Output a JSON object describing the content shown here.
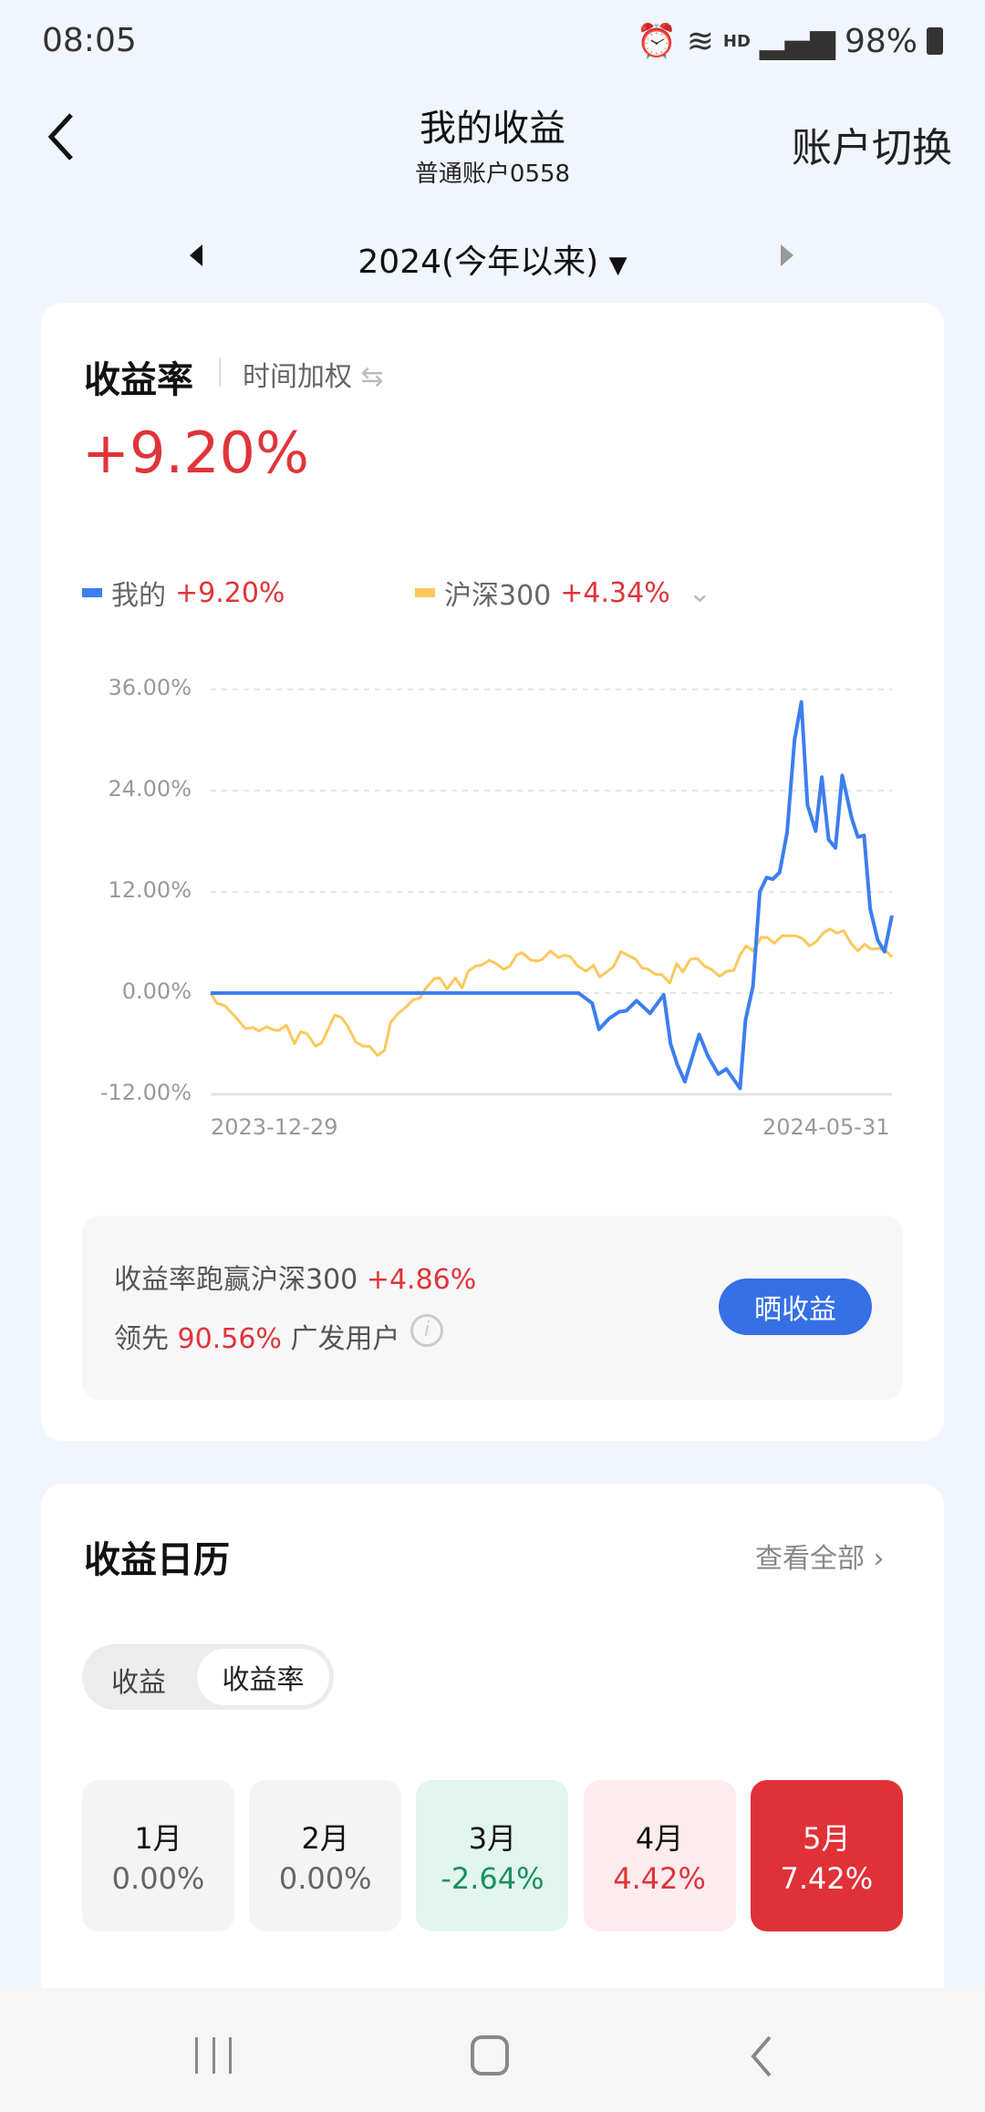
{
  "status": {
    "time": "08:05",
    "hd": "HD",
    "battery": "98%"
  },
  "header": {
    "title": "我的收益",
    "subtitle": "普通账户0558",
    "switch_label": "账户切换"
  },
  "period": {
    "label": "2024(今年以来)"
  },
  "rate_card": {
    "title": "收益率",
    "method": "时间加权",
    "value": "+9.20%",
    "legend": [
      {
        "name": "我的",
        "value": "+9.20%",
        "color": "#3d7ef0"
      },
      {
        "name": "沪深300",
        "value": "+4.34%",
        "color": "#fcc85e"
      }
    ],
    "summary_prefix": "收益率跑赢沪深300",
    "summary_value": "+4.86%",
    "lead_prefix": "领先",
    "lead_value": "90.56%",
    "lead_suffix": "广发用户",
    "share_button": "晒收益"
  },
  "chart_data": {
    "type": "line",
    "y_ticks": [
      "36.00%",
      "24.00%",
      "12.00%",
      "0.00%",
      "-12.00%"
    ],
    "ylim": [
      -12,
      36
    ],
    "x_labels": [
      "2023-12-29",
      "2024-05-31"
    ],
    "xlim": [
      0,
      100
    ],
    "grid": true,
    "series": [
      {
        "name": "我的",
        "color": "#3d7ef0",
        "points": [
          [
            0,
            0
          ],
          [
            54,
            0
          ],
          [
            55,
            -0.6
          ],
          [
            56,
            -1.2
          ],
          [
            57,
            -4.3
          ],
          [
            58.5,
            -3
          ],
          [
            60,
            -2.2
          ],
          [
            61,
            -2.1
          ],
          [
            62.5,
            -0.9
          ],
          [
            64.5,
            -2.4
          ],
          [
            66.5,
            -0.2
          ],
          [
            67.5,
            -6
          ],
          [
            68.5,
            -8.5
          ],
          [
            69.6,
            -10.5
          ],
          [
            71.7,
            -4.9
          ],
          [
            73,
            -7.5
          ],
          [
            74.5,
            -9.6
          ],
          [
            75.7,
            -9
          ],
          [
            77.7,
            -11.3
          ],
          [
            78.5,
            -3.2
          ],
          [
            79.6,
            0.8
          ],
          [
            80.6,
            12
          ],
          [
            81.6,
            13.7
          ],
          [
            82.5,
            13.5
          ],
          [
            83.5,
            14.3
          ],
          [
            84.6,
            19
          ],
          [
            85.7,
            30
          ],
          [
            86.7,
            34.5
          ],
          [
            87.6,
            22.3
          ],
          [
            88.8,
            19.2
          ],
          [
            89.7,
            25.6
          ],
          [
            90.7,
            18.2
          ],
          [
            91.7,
            17.2
          ],
          [
            92.7,
            25.8
          ],
          [
            94.1,
            20.7
          ],
          [
            95,
            18.5
          ],
          [
            95.9,
            18.7
          ],
          [
            96.8,
            10
          ],
          [
            97.9,
            6.3
          ],
          [
            98.9,
            4.9
          ],
          [
            100,
            9.2
          ]
        ]
      },
      {
        "name": "沪深300",
        "color": "#fcc85e",
        "points": [
          [
            0,
            0
          ],
          [
            0.9,
            -1.2
          ],
          [
            2.1,
            -1.5
          ],
          [
            3.6,
            -2.8
          ],
          [
            5.1,
            -4.2
          ],
          [
            6.3,
            -4.1
          ],
          [
            7.1,
            -4.5
          ],
          [
            8.2,
            -4
          ],
          [
            9.4,
            -4.4
          ],
          [
            10.1,
            -4.4
          ],
          [
            11.1,
            -3.8
          ],
          [
            12.3,
            -6
          ],
          [
            13.2,
            -4.6
          ],
          [
            14.1,
            -4.8
          ],
          [
            15.4,
            -6.3
          ],
          [
            16.3,
            -5.9
          ],
          [
            17.4,
            -4
          ],
          [
            18.2,
            -2.6
          ],
          [
            19.2,
            -2.9
          ],
          [
            20.1,
            -3.9
          ],
          [
            21.3,
            -5.8
          ],
          [
            22.4,
            -6.3
          ],
          [
            23.3,
            -6.3
          ],
          [
            24.5,
            -7.4
          ],
          [
            25.5,
            -6.8
          ],
          [
            26.4,
            -3.5
          ],
          [
            27.4,
            -2.5
          ],
          [
            28.6,
            -1.7
          ],
          [
            29.7,
            -0.8
          ],
          [
            30.7,
            -0.6
          ],
          [
            31.6,
            0.6
          ],
          [
            32.8,
            1.7
          ],
          [
            33.6,
            1.8
          ],
          [
            34.7,
            0.5
          ],
          [
            35.9,
            1.8
          ],
          [
            36.9,
            0.6
          ],
          [
            37.8,
            2.6
          ],
          [
            38.9,
            3.2
          ],
          [
            39.7,
            3.3
          ],
          [
            40.9,
            3.9
          ],
          [
            41.9,
            3.5
          ],
          [
            43,
            2.8
          ],
          [
            43.9,
            3.2
          ],
          [
            44.9,
            4.5
          ],
          [
            45.7,
            4.8
          ],
          [
            47,
            3.9
          ],
          [
            48,
            3.8
          ],
          [
            48.7,
            4
          ],
          [
            49.9,
            5
          ],
          [
            51,
            4.2
          ],
          [
            52,
            4.5
          ],
          [
            52.8,
            4.3
          ],
          [
            53.9,
            3.2
          ],
          [
            55.1,
            2.6
          ],
          [
            56.2,
            3.3
          ],
          [
            57.1,
            1.9
          ],
          [
            58.1,
            2.5
          ],
          [
            59.1,
            3.1
          ],
          [
            60.2,
            4.9
          ],
          [
            61.2,
            4.5
          ],
          [
            62.4,
            4
          ],
          [
            63.3,
            3
          ],
          [
            64.3,
            2.8
          ],
          [
            65.3,
            2.2
          ],
          [
            66.2,
            2.2
          ],
          [
            67.4,
            1.2
          ],
          [
            68.4,
            3.5
          ],
          [
            69.3,
            2.5
          ],
          [
            70.4,
            4
          ],
          [
            71.4,
            4.1
          ],
          [
            72.5,
            3.2
          ],
          [
            73.5,
            2.8
          ],
          [
            74.7,
            2
          ],
          [
            75.8,
            2.6
          ],
          [
            76.8,
            2.7
          ],
          [
            77.7,
            4.5
          ],
          [
            78.6,
            5.6
          ],
          [
            79.6,
            5
          ],
          [
            80.8,
            6.6
          ],
          [
            81.7,
            6.6
          ],
          [
            82.7,
            5.9
          ],
          [
            83.9,
            6.8
          ],
          [
            85,
            6.8
          ],
          [
            85.8,
            6.8
          ],
          [
            86.8,
            6.5
          ],
          [
            87.9,
            5.6
          ],
          [
            88.9,
            6.1
          ],
          [
            90,
            7.2
          ],
          [
            90.9,
            7.6
          ],
          [
            91.9,
            7.1
          ],
          [
            92.9,
            7.4
          ],
          [
            93.9,
            6
          ],
          [
            95,
            5
          ],
          [
            96,
            5.8
          ],
          [
            96.9,
            5.2
          ],
          [
            98.1,
            5.3
          ],
          [
            99.1,
            5
          ],
          [
            100,
            4.3
          ]
        ]
      }
    ]
  },
  "calendar": {
    "title": "收益日历",
    "view_all": "查看全部",
    "tabs": [
      "收益",
      "收益率"
    ],
    "active_tab": "收益率",
    "months": [
      {
        "month": "1月",
        "value": "0.00%",
        "bg": "#f4f4f4",
        "mc": "#111",
        "vc": "#666"
      },
      {
        "month": "2月",
        "value": "0.00%",
        "bg": "#f4f4f4",
        "mc": "#111",
        "vc": "#666"
      },
      {
        "month": "3月",
        "value": "-2.64%",
        "bg": "#e2f5ee",
        "mc": "#111",
        "vc": "#17915e"
      },
      {
        "month": "4月",
        "value": "4.42%",
        "bg": "#fdecee",
        "mc": "#111",
        "vc": "#e0343a"
      },
      {
        "month": "5月",
        "value": "7.42%",
        "bg": "#e03137",
        "mc": "#fff",
        "vc": "#fff"
      }
    ]
  }
}
